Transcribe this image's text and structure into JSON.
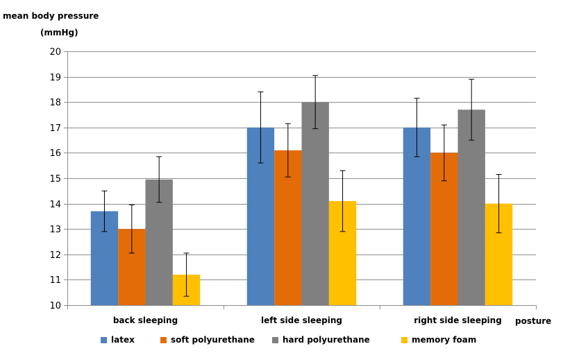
{
  "chart_data": {
    "type": "bar",
    "ylabel_line1": "mean body pressure",
    "ylabel_line2": "(mmHg)",
    "xlabel": "posture",
    "ylim": [
      10,
      20
    ],
    "yticks": [
      10,
      11,
      12,
      13,
      14,
      15,
      16,
      17,
      18,
      19,
      20
    ],
    "grid": true,
    "legend_position": "bottom",
    "categories": [
      "back sleeping",
      "left side sleeping",
      "right side sleeping"
    ],
    "series": [
      {
        "name": "latex",
        "color": "#4F81BD",
        "values": [
          13.7,
          17.0,
          17.0
        ],
        "errors": [
          0.8,
          1.4,
          1.15
        ]
      },
      {
        "name": "soft polyurethane",
        "color": "#E36C09",
        "values": [
          13.0,
          16.1,
          16.0
        ],
        "errors": [
          0.95,
          1.05,
          1.1
        ]
      },
      {
        "name": "hard polyurethane",
        "color": "#808080",
        "values": [
          14.95,
          18.0,
          17.7
        ],
        "errors": [
          0.9,
          1.05,
          1.2
        ]
      },
      {
        "name": "memory foam",
        "color": "#FFC000",
        "values": [
          11.2,
          14.1,
          14.0
        ],
        "errors": [
          0.85,
          1.2,
          1.15
        ]
      }
    ]
  }
}
